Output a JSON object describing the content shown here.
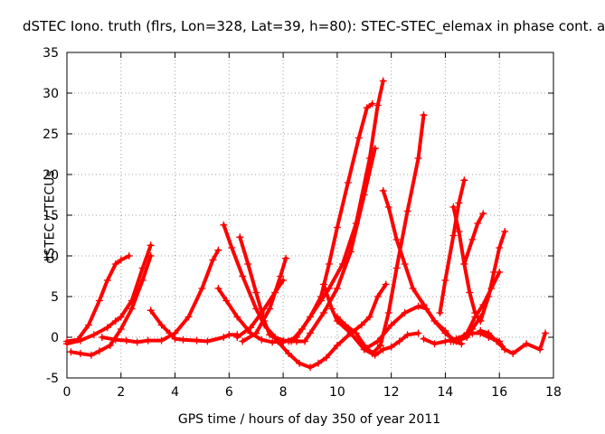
{
  "chart_data": {
    "type": "scatter",
    "title": "dSTEC Iono. truth (flrs, Lon=328, Lat=39, h=80): STEC-STEC_elemax in phase cont. a",
    "xlabel": "GPS time / hours of day 350 of year 2011",
    "ylabel": "dSTEC  / TECUs",
    "xlim": [
      0,
      18
    ],
    "ylim": [
      -5,
      35
    ],
    "xticks": [
      0,
      2,
      4,
      6,
      8,
      10,
      12,
      14,
      16,
      18
    ],
    "yticks": [
      -5,
      0,
      5,
      10,
      15,
      20,
      25,
      30,
      35
    ],
    "grid": true,
    "grid_style": "dotted",
    "marker": "plus",
    "color": "#ff0000",
    "series": [
      {
        "x": [
          0.0,
          0.4,
          0.8,
          1.2,
          1.5,
          1.8,
          2.0,
          2.3
        ],
        "y": [
          -0.5,
          -0.3,
          1.5,
          4.5,
          7.0,
          9.0,
          9.5,
          10.0
        ]
      },
      {
        "x": [
          0.0,
          0.5,
          1.0,
          1.5,
          1.8,
          2.0,
          2.4,
          2.8,
          3.1
        ],
        "y": [
          -0.8,
          -0.4,
          0.3,
          1.2,
          2.0,
          2.5,
          4.5,
          8.5,
          11.3
        ]
      },
      {
        "x": [
          0.15,
          0.5,
          0.9,
          1.2,
          1.6,
          2.0,
          2.4,
          2.8,
          3.1
        ],
        "y": [
          -1.8,
          -2.0,
          -2.2,
          -1.7,
          -1.0,
          1.0,
          3.5,
          7.0,
          10.0
        ]
      },
      {
        "x": [
          1.3,
          1.8,
          2.2,
          2.6,
          3.0,
          3.5,
          4.0,
          4.5,
          5.0,
          5.4,
          5.6
        ],
        "y": [
          0.0,
          -0.3,
          -0.4,
          -0.6,
          -0.4,
          -0.4,
          0.5,
          2.5,
          6.0,
          9.5,
          10.7
        ]
      },
      {
        "x": [
          3.1,
          3.5,
          3.8,
          4.0,
          4.3,
          4.8,
          5.2,
          5.8,
          6.0,
          6.3
        ],
        "y": [
          3.3,
          1.5,
          0.5,
          -0.2,
          -0.3,
          -0.4,
          -0.5,
          0.0,
          0.3,
          0.3
        ]
      },
      {
        "x": [
          5.6,
          5.9,
          6.3,
          6.8,
          7.2,
          7.6,
          8.0,
          8.5
        ],
        "y": [
          6.0,
          4.5,
          2.5,
          0.5,
          -0.3,
          -0.6,
          -0.5,
          -0.4
        ]
      },
      {
        "x": [
          5.8,
          6.1,
          6.5,
          7.0,
          7.3,
          7.7,
          8.0,
          8.5
        ],
        "y": [
          13.8,
          11.0,
          7.5,
          3.5,
          1.5,
          0.0,
          -0.4,
          -0.5
        ]
      },
      {
        "x": [
          6.4,
          6.7,
          7.0,
          7.3,
          7.5,
          7.8,
          8.2,
          8.8,
          9.0,
          9.5,
          10.0,
          10.5,
          11.0,
          11.4
        ],
        "y": [
          12.3,
          9.0,
          5.5,
          2.0,
          0.3,
          -0.3,
          -0.5,
          -0.5,
          0.5,
          3.0,
          6.0,
          10.5,
          17.5,
          23.2
        ]
      },
      {
        "x": [
          6.5,
          7.0,
          7.5,
          7.9,
          8.1
        ],
        "y": [
          -0.5,
          0.5,
          3.5,
          7.5,
          9.7
        ]
      },
      {
        "x": [
          6.3,
          6.8,
          7.2,
          7.7,
          8.0
        ],
        "y": [
          0.0,
          1.2,
          3.0,
          5.5,
          7.0
        ]
      },
      {
        "x": [
          7.8,
          8.2,
          8.6,
          9.0,
          9.3,
          9.6,
          10.0,
          10.5,
          10.9,
          11.2,
          11.5,
          11.8
        ],
        "y": [
          -0.5,
          -2.0,
          -3.2,
          -3.7,
          -3.2,
          -2.5,
          -1.0,
          0.5,
          1.5,
          2.5,
          5.0,
          6.5
        ]
      },
      {
        "x": [
          8.0,
          8.5,
          9.0,
          9.4,
          9.7,
          10.0,
          10.4,
          10.8,
          11.1,
          11.3
        ],
        "y": [
          -0.6,
          0.0,
          2.5,
          5.0,
          9.0,
          13.5,
          19.0,
          24.5,
          28.2,
          28.7
        ]
      },
      {
        "x": [
          8.3,
          8.7,
          9.0,
          9.4,
          9.7,
          10.2,
          10.7,
          11.2,
          11.5,
          11.7
        ],
        "y": [
          -0.5,
          1.0,
          2.5,
          4.5,
          6.0,
          9.0,
          14.0,
          22.0,
          28.5,
          31.5
        ]
      },
      {
        "x": [
          9.5,
          9.8,
          10.0,
          10.5,
          11.0,
          11.4,
          11.7,
          12.0,
          12.3,
          12.6,
          13.0
        ],
        "y": [
          6.5,
          3.5,
          2.0,
          0.5,
          -1.5,
          -2.2,
          -1.5,
          -1.2,
          -0.5,
          0.3,
          0.5
        ]
      },
      {
        "x": [
          10.0,
          10.3,
          10.7,
          11.0,
          11.3,
          11.6,
          11.9,
          12.2,
          12.6,
          13.0,
          13.2
        ],
        "y": [
          2.5,
          1.5,
          0.5,
          -1.0,
          -2.0,
          -1.0,
          3.0,
          8.5,
          15.5,
          22.0,
          27.3
        ]
      },
      {
        "x": [
          11.0,
          11.5,
          12.0,
          12.5,
          13.0,
          13.3,
          13.6,
          14.0,
          14.4,
          14.8,
          15.0,
          15.3
        ],
        "y": [
          -1.5,
          -0.5,
          1.5,
          3.0,
          3.8,
          3.5,
          2.0,
          0.5,
          -0.5,
          0.0,
          1.0,
          2.5
        ]
      },
      {
        "x": [
          11.7,
          11.9,
          12.2,
          12.5,
          12.8,
          13.2,
          13.6,
          14.0,
          14.3,
          14.6
        ],
        "y": [
          18.0,
          16.0,
          12.0,
          9.0,
          6.0,
          4.0,
          2.0,
          0.8,
          -0.5,
          -0.8
        ]
      },
      {
        "x": [
          13.2,
          13.6,
          14.0,
          14.4,
          14.7,
          15.0,
          15.3,
          15.6,
          16.0,
          16.2,
          16.5,
          17.0,
          17.5,
          17.7
        ],
        "y": [
          -0.2,
          -0.8,
          -0.5,
          -0.2,
          0.2,
          0.5,
          0.5,
          0.0,
          -0.5,
          -1.5,
          -2.0,
          -0.8,
          -1.5,
          0.5
        ]
      },
      {
        "x": [
          13.8,
          14.0,
          14.3,
          14.5,
          14.7
        ],
        "y": [
          3.0,
          7.0,
          12.5,
          16.5,
          19.3
        ]
      },
      {
        "x": [
          14.3,
          14.5,
          14.7,
          14.9,
          15.1,
          15.3
        ],
        "y": [
          16.0,
          13.0,
          9.0,
          5.5,
          3.0,
          2.0
        ]
      },
      {
        "x": [
          14.7,
          15.0,
          15.2,
          15.4
        ],
        "y": [
          9.0,
          12.0,
          14.0,
          15.2
        ]
      },
      {
        "x": [
          14.2,
          14.5,
          14.8,
          15.1,
          15.4,
          15.7,
          16.0
        ],
        "y": [
          -0.5,
          -0.2,
          0.5,
          2.5,
          4.0,
          6.0,
          8.0
        ]
      },
      {
        "x": [
          15.3,
          15.6,
          15.8,
          16.0,
          16.2
        ],
        "y": [
          2.0,
          5.0,
          8.0,
          11.0,
          13.0
        ]
      },
      {
        "x": [
          15.3,
          15.6,
          15.9,
          16.2
        ],
        "y": [
          0.8,
          0.5,
          -0.5,
          -1.5
        ]
      }
    ]
  }
}
